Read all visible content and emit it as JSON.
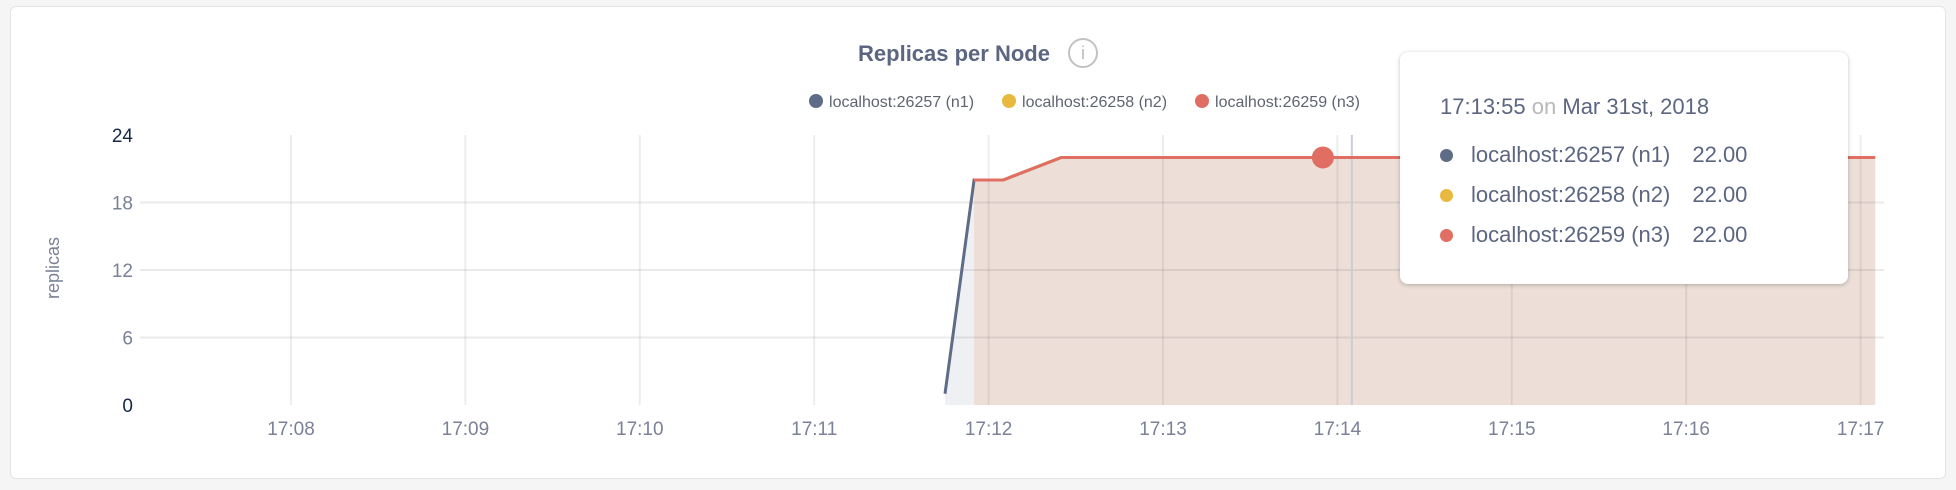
{
  "chart_data": {
    "type": "area",
    "title": "Replicas per Node",
    "title_icon": "info-icon",
    "ylabel": "replicas",
    "ylim": [
      0,
      24
    ],
    "yticks": [
      "0",
      "6",
      "12",
      "18",
      "24"
    ],
    "xticks": [
      "17:08",
      "17:09",
      "17:10",
      "17:11",
      "17:12",
      "17:13",
      "17:14",
      "17:15",
      "17:16",
      "17:17"
    ],
    "grid": true,
    "legend_placement": "top-right",
    "series": [
      {
        "name": "localhost:26257 (n1)",
        "color": "#5f6c87",
        "fill": "#eff0f4",
        "points": [
          [
            "17:11:45",
            1
          ],
          [
            "17:11:55",
            20
          ],
          [
            "17:12:05",
            20
          ],
          [
            "17:12:25",
            22
          ],
          [
            "17:17:05",
            22
          ]
        ]
      },
      {
        "name": "localhost:26258 (n2)",
        "color": "#e9b93f",
        "fill": "#f5ecd6",
        "points": [
          [
            "17:11:55",
            20
          ],
          [
            "17:12:05",
            20
          ],
          [
            "17:12:25",
            22
          ],
          [
            "17:17:05",
            22
          ]
        ]
      },
      {
        "name": "localhost:26259 (n3)",
        "color": "#e06e62",
        "fill": "#eddfd8",
        "points": [
          [
            "17:11:55",
            20
          ],
          [
            "17:12:05",
            20
          ],
          [
            "17:12:25",
            22
          ],
          [
            "17:17:05",
            22
          ]
        ]
      }
    ],
    "hover": {
      "time": "17:13:55",
      "on": "on",
      "date": "Mar 31st, 2018",
      "values": [
        "22.00",
        "22.00",
        "22.00"
      ]
    }
  }
}
